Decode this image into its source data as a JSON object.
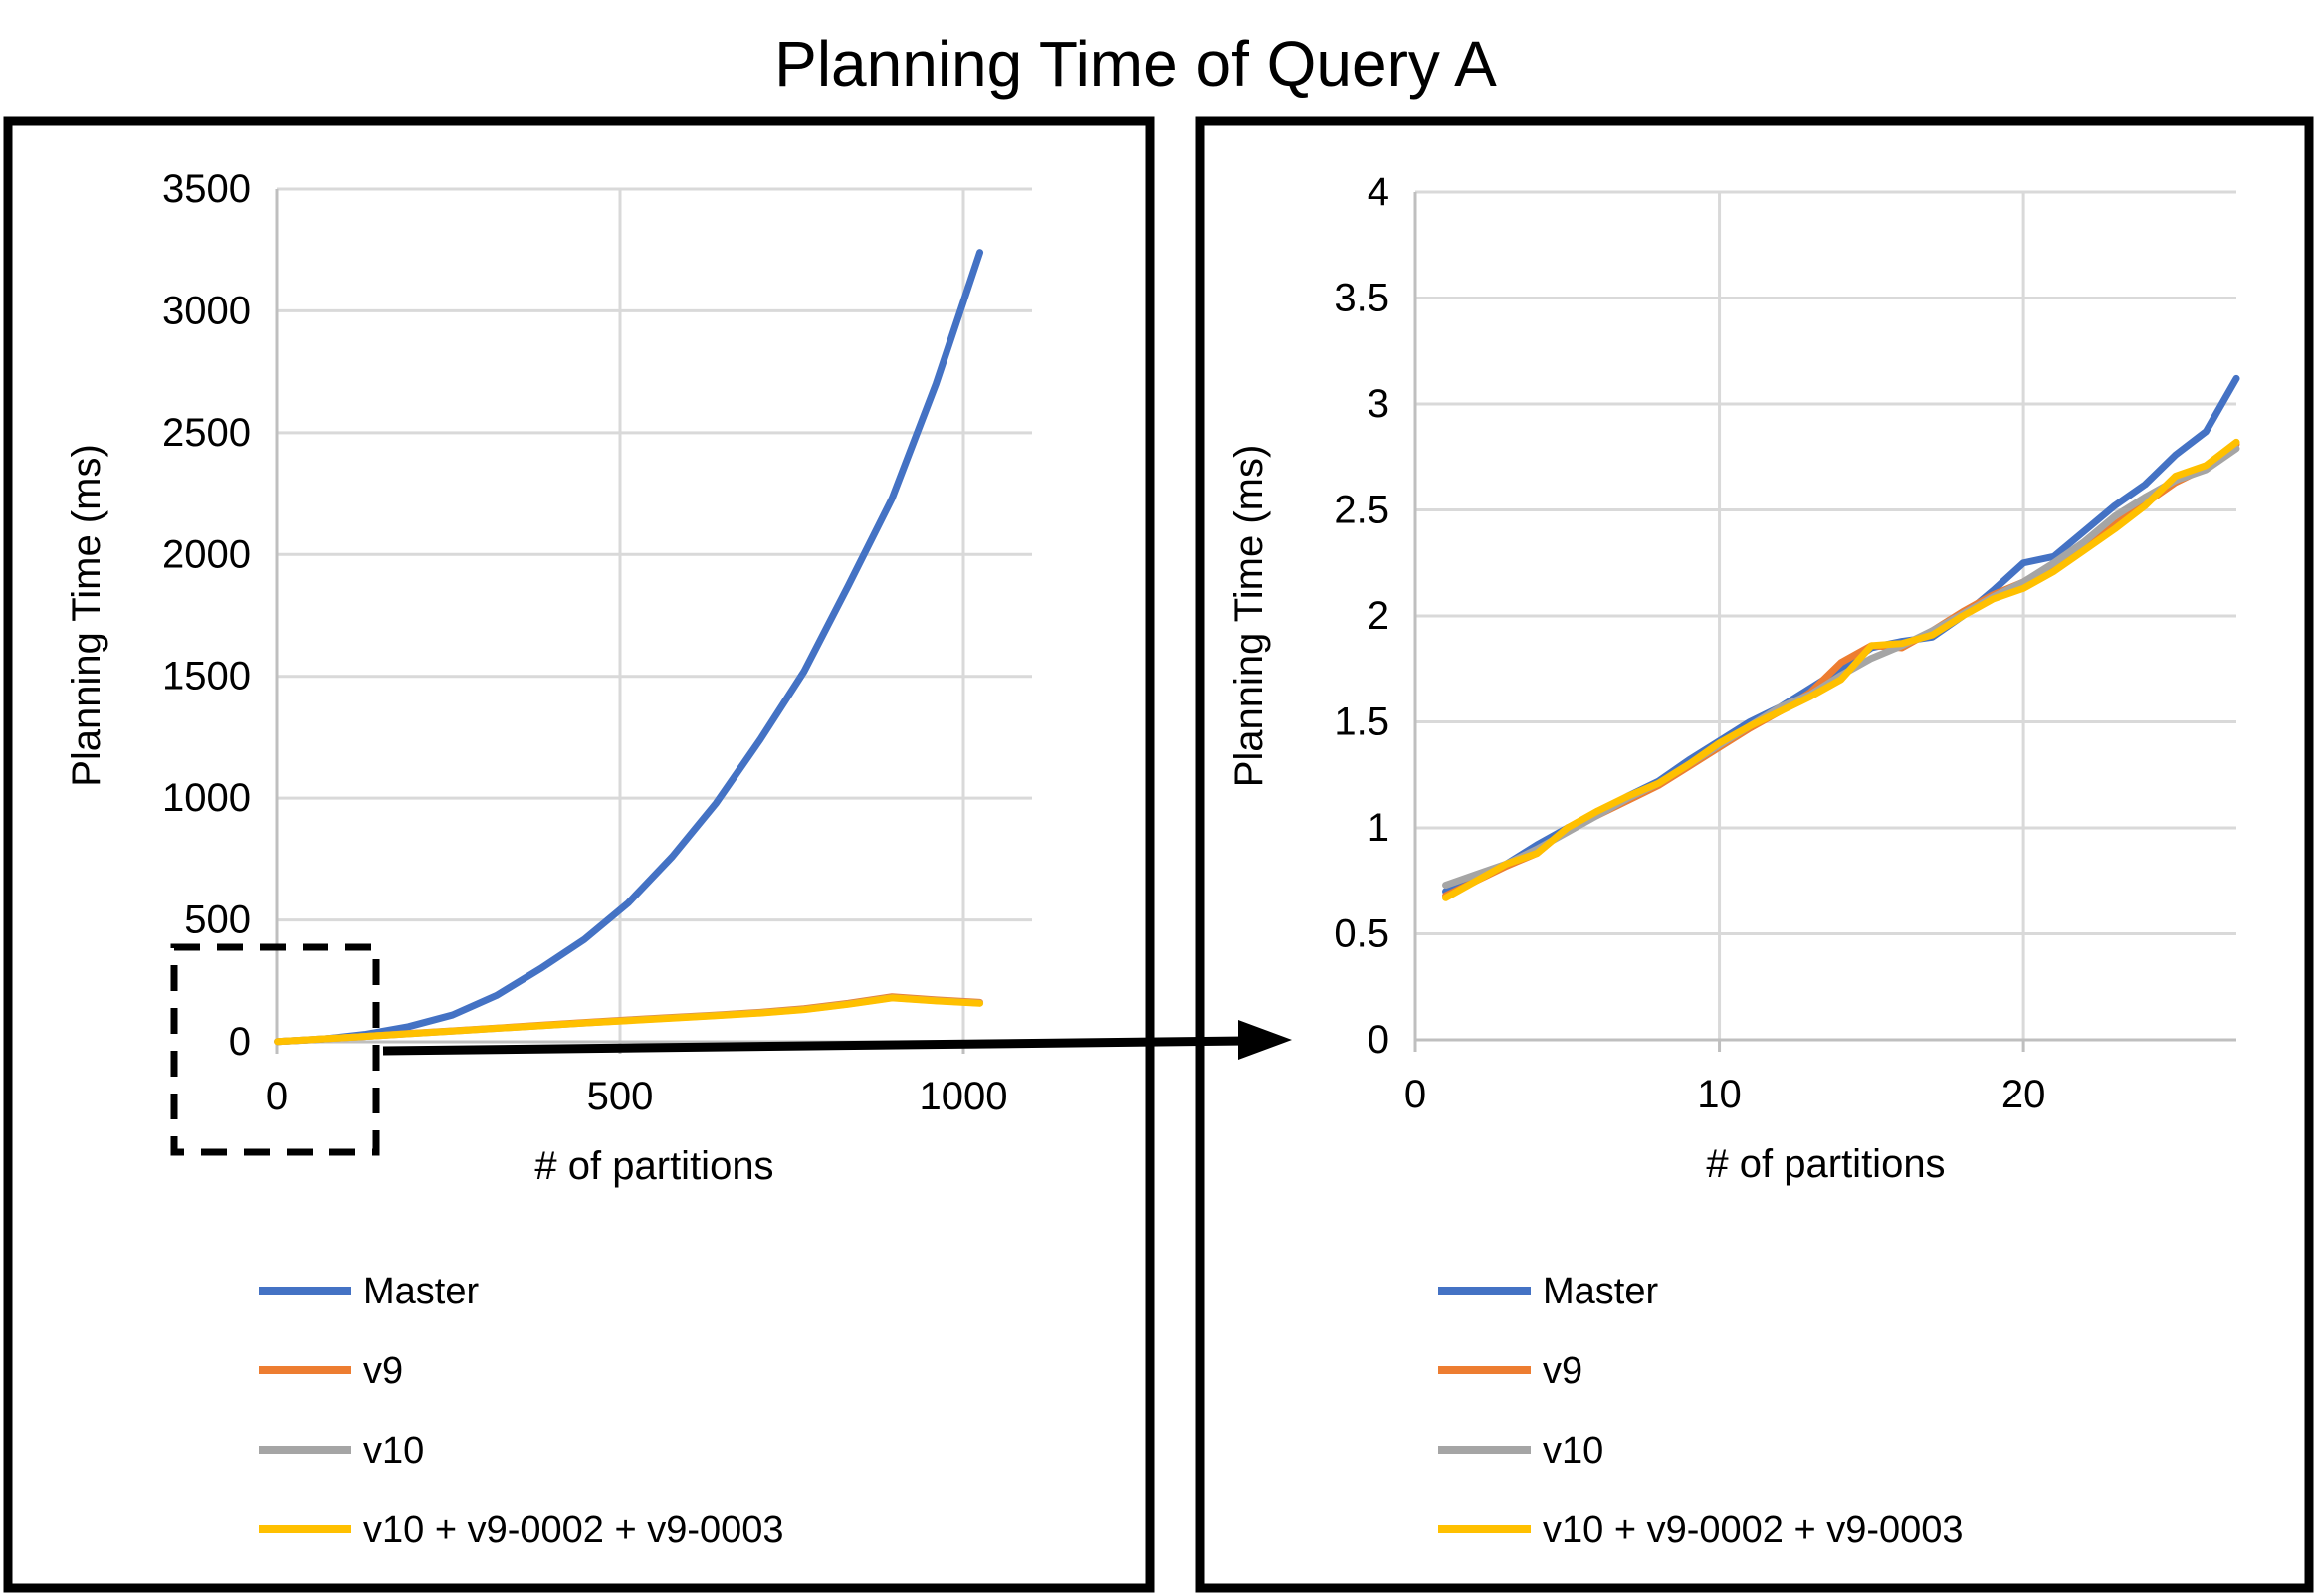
{
  "title": "Planning Time of Query A",
  "colors": {
    "master": "#4472C4",
    "v9": "#ED7D31",
    "v10": "#A5A5A5",
    "v10_patched": "#FFC000",
    "gridline": "#D9D9D9",
    "axis_line": "#BFBFBF",
    "frame": "#000000",
    "text": "#000000"
  },
  "chart_data": [
    {
      "type": "line",
      "name": "overview",
      "xlabel": "# of partitions",
      "ylabel": "Planning Time (ms)",
      "xlim": [
        0,
        1100
      ],
      "ylim": [
        0,
        3500
      ],
      "xticks": [
        0,
        500,
        1000
      ],
      "yticks": [
        0,
        500,
        1000,
        1500,
        2000,
        2500,
        3000,
        3500
      ],
      "grid": true,
      "legend_position": "below-left",
      "x": [
        1,
        64,
        128,
        192,
        256,
        320,
        384,
        448,
        512,
        576,
        640,
        704,
        768,
        832,
        896,
        960,
        1024
      ],
      "series": [
        {
          "name": "Master",
          "color": "#4472C4",
          "values": [
            1,
            10,
            30,
            62,
            110,
            190,
            300,
            420,
            570,
            760,
            980,
            1240,
            1520,
            1870,
            2230,
            2700,
            3240
          ]
        },
        {
          "name": "v9",
          "color": "#ED7D31",
          "values": [
            1,
            11,
            22,
            34,
            45,
            56,
            68,
            79,
            90,
            100,
            110,
            121,
            136,
            158,
            185,
            172,
            162
          ]
        },
        {
          "name": "v10",
          "color": "#A5A5A5",
          "values": [
            1,
            11,
            22,
            33,
            44,
            55,
            66,
            77,
            88,
            98,
            108,
            119,
            133,
            155,
            181,
            169,
            159
          ]
        },
        {
          "name": "v10 + v9-0002 + v9-0003",
          "color": "#FFC000",
          "values": [
            1,
            11,
            22,
            33,
            44,
            55,
            66,
            77,
            87,
            97,
            107,
            118,
            132,
            154,
            180,
            168,
            158
          ]
        }
      ]
    },
    {
      "type": "line",
      "name": "zoomed-low-partition-counts",
      "xlabel": "# of partitions",
      "ylabel": "Planning Time (ms)",
      "xlim": [
        0,
        27
      ],
      "ylim": [
        0,
        4
      ],
      "xticks": [
        0,
        10,
        20
      ],
      "yticks": [
        0,
        0.5,
        1,
        1.5,
        2,
        2.5,
        3,
        3.5,
        4
      ],
      "grid": true,
      "legend_position": "below-left",
      "x": [
        1,
        2,
        3,
        4,
        5,
        6,
        7,
        8,
        9,
        10,
        11,
        12,
        13,
        14,
        15,
        16,
        17,
        18,
        19,
        20,
        21,
        22,
        23,
        24,
        25,
        26,
        27
      ],
      "series": [
        {
          "name": "Master",
          "color": "#4472C4",
          "values": [
            0.7,
            0.76,
            0.83,
            0.92,
            1.0,
            1.07,
            1.15,
            1.22,
            1.32,
            1.41,
            1.5,
            1.57,
            1.66,
            1.75,
            1.85,
            1.88,
            1.9,
            2.0,
            2.12,
            2.25,
            2.28,
            2.4,
            2.52,
            2.62,
            2.76,
            2.87,
            3.12
          ]
        },
        {
          "name": "v9",
          "color": "#ED7D31",
          "values": [
            0.68,
            0.75,
            0.82,
            0.88,
            1.0,
            1.06,
            1.13,
            1.2,
            1.29,
            1.38,
            1.47,
            1.55,
            1.64,
            1.78,
            1.86,
            1.85,
            1.93,
            2.02,
            2.1,
            2.16,
            2.24,
            2.33,
            2.43,
            2.53,
            2.63,
            2.7,
            2.81
          ]
        },
        {
          "name": "v10",
          "color": "#A5A5A5",
          "values": [
            0.73,
            0.78,
            0.83,
            0.9,
            0.98,
            1.06,
            1.14,
            1.21,
            1.3,
            1.39,
            1.48,
            1.57,
            1.63,
            1.72,
            1.8,
            1.86,
            1.93,
            2.01,
            2.09,
            2.16,
            2.25,
            2.35,
            2.47,
            2.56,
            2.64,
            2.69,
            2.79
          ]
        },
        {
          "name": "v10 + v9-0002 + v9-0003",
          "color": "#FFC000",
          "values": [
            0.67,
            0.75,
            0.83,
            0.88,
            1.0,
            1.08,
            1.15,
            1.21,
            1.3,
            1.4,
            1.48,
            1.55,
            1.62,
            1.7,
            1.86,
            1.87,
            1.91,
            2.0,
            2.08,
            2.13,
            2.21,
            2.31,
            2.41,
            2.52,
            2.66,
            2.71,
            2.82
          ]
        }
      ]
    }
  ]
}
